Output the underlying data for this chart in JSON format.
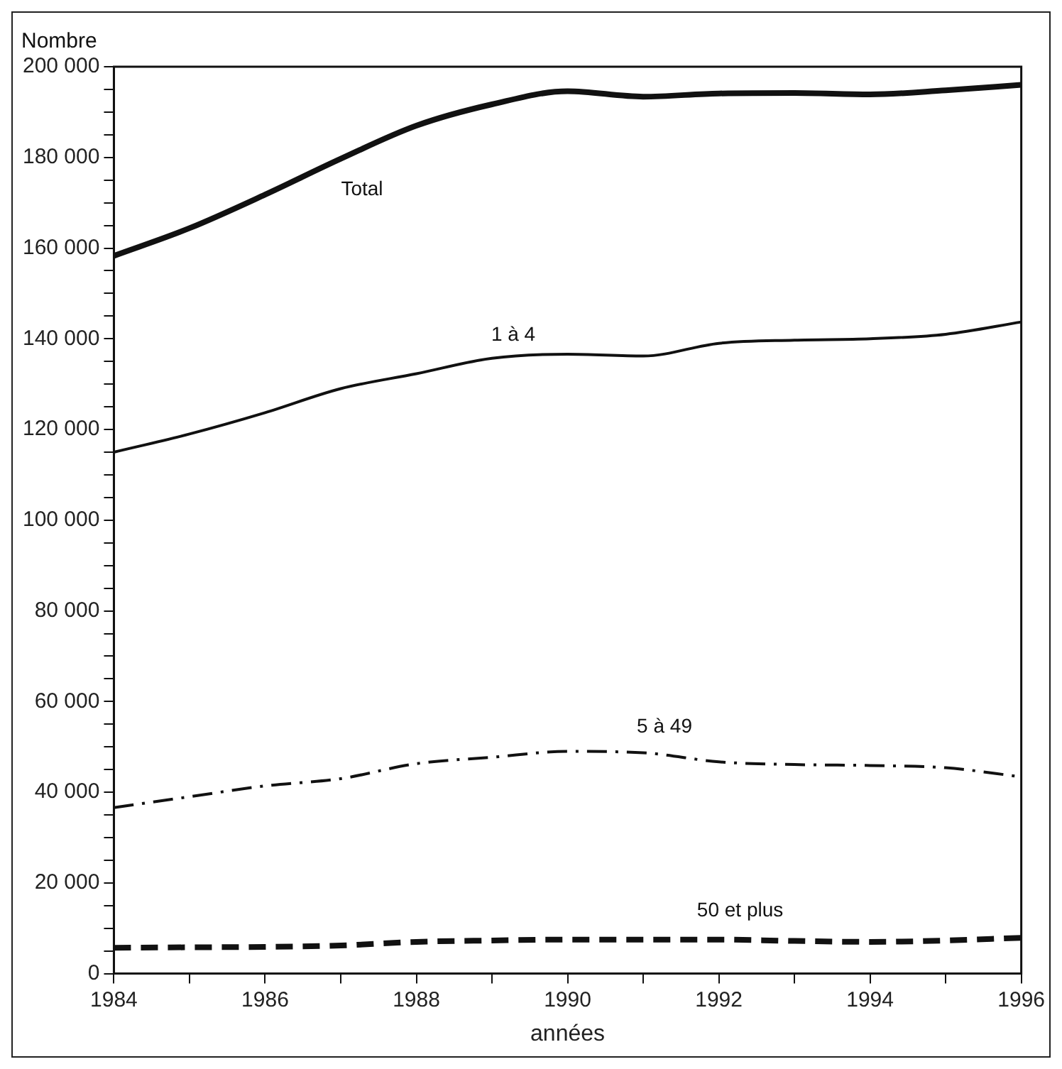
{
  "chart_data": {
    "type": "line",
    "ylabel": "Nombre",
    "xlabel": "années",
    "x": [
      1984,
      1985,
      1986,
      1987,
      1988,
      1989,
      1990,
      1991,
      1992,
      1993,
      1994,
      1995,
      1996
    ],
    "series": [
      {
        "type": "line",
        "name": "Total",
        "color": "#111111",
        "line_style": "solid",
        "values": [
          158300,
          164400,
          171800,
          179700,
          187000,
          191700,
          194600,
          193400,
          194100,
          194200,
          193900,
          194800,
          196000
        ]
      },
      {
        "type": "line",
        "name": "1 à 4",
        "color": "#111111",
        "line_style": "solid",
        "values": [
          115000,
          119000,
          123700,
          129000,
          132300,
          135700,
          136600,
          136200,
          139000,
          139700,
          140000,
          141000,
          143700
        ]
      },
      {
        "type": "line",
        "name": "5 à 49",
        "color": "#111111",
        "line_style": "dashed",
        "values": [
          36600,
          39000,
          41400,
          43000,
          46300,
          47700,
          49000,
          48700,
          46700,
          46100,
          45900,
          45400,
          43400
        ]
      },
      {
        "type": "line",
        "name": "50 et plus",
        "color": "#111111",
        "line_style": "dashed",
        "values": [
          5700,
          5800,
          5900,
          6200,
          7000,
          7300,
          7500,
          7500,
          7500,
          7200,
          7000,
          7300,
          7900
        ]
      }
    ],
    "xlim": [
      1984,
      1996
    ],
    "xticks": [
      1984,
      {
        "value": 1985,
        "label": null
      },
      1986,
      {
        "value": 1987,
        "label": null
      },
      1988,
      {
        "value": 1989,
        "label": null
      },
      1990,
      {
        "value": 1991,
        "label": null
      },
      1992,
      {
        "value": 1993,
        "label": null
      },
      1994,
      {
        "value": 1995,
        "label": null
      },
      1996
    ],
    "ylim": [
      0,
      200000
    ],
    "yticks": [
      0,
      {
        "value": 5000,
        "label": null
      },
      {
        "value": 10000,
        "label": null
      },
      {
        "value": 15000,
        "label": null
      },
      {
        "value": 20000,
        "label": "20 000"
      },
      {
        "value": 25000,
        "label": null
      },
      {
        "value": 30000,
        "label": null
      },
      {
        "value": 35000,
        "label": null
      },
      {
        "value": 40000,
        "label": "40 000"
      },
      {
        "value": 45000,
        "label": null
      },
      {
        "value": 50000,
        "label": null
      },
      {
        "value": 55000,
        "label": null
      },
      {
        "value": 60000,
        "label": "60 000"
      },
      {
        "value": 65000,
        "label": null
      },
      {
        "value": 70000,
        "label": null
      },
      {
        "value": 75000,
        "label": null
      },
      {
        "value": 80000,
        "label": "80 000"
      },
      {
        "value": 85000,
        "label": null
      },
      {
        "value": 90000,
        "label": null
      },
      {
        "value": 95000,
        "label": null
      },
      {
        "value": 100000,
        "label": "100 000"
      },
      {
        "value": 105000,
        "label": null
      },
      {
        "value": 110000,
        "label": null
      },
      {
        "value": 115000,
        "label": null
      },
      {
        "value": 120000,
        "label": "120 000"
      },
      {
        "value": 125000,
        "label": null
      },
      {
        "value": 130000,
        "label": null
      },
      {
        "value": 135000,
        "label": null
      },
      {
        "value": 140000,
        "label": "140 000"
      },
      {
        "value": 145000,
        "label": null
      },
      {
        "value": 150000,
        "label": null
      },
      {
        "value": 155000,
        "label": null
      },
      {
        "value": 160000,
        "label": "160 000"
      },
      {
        "value": 165000,
        "label": null
      },
      {
        "value": 170000,
        "label": null
      },
      {
        "value": 175000,
        "label": null
      },
      {
        "value": 180000,
        "label": "180 000"
      },
      {
        "value": 185000,
        "label": null
      },
      {
        "value": 190000,
        "label": null
      },
      {
        "value": 195000,
        "label": null
      },
      {
        "value": 200000,
        "label": "200 000"
      }
    ],
    "grid": false,
    "legend": false,
    "marker": "none"
  }
}
